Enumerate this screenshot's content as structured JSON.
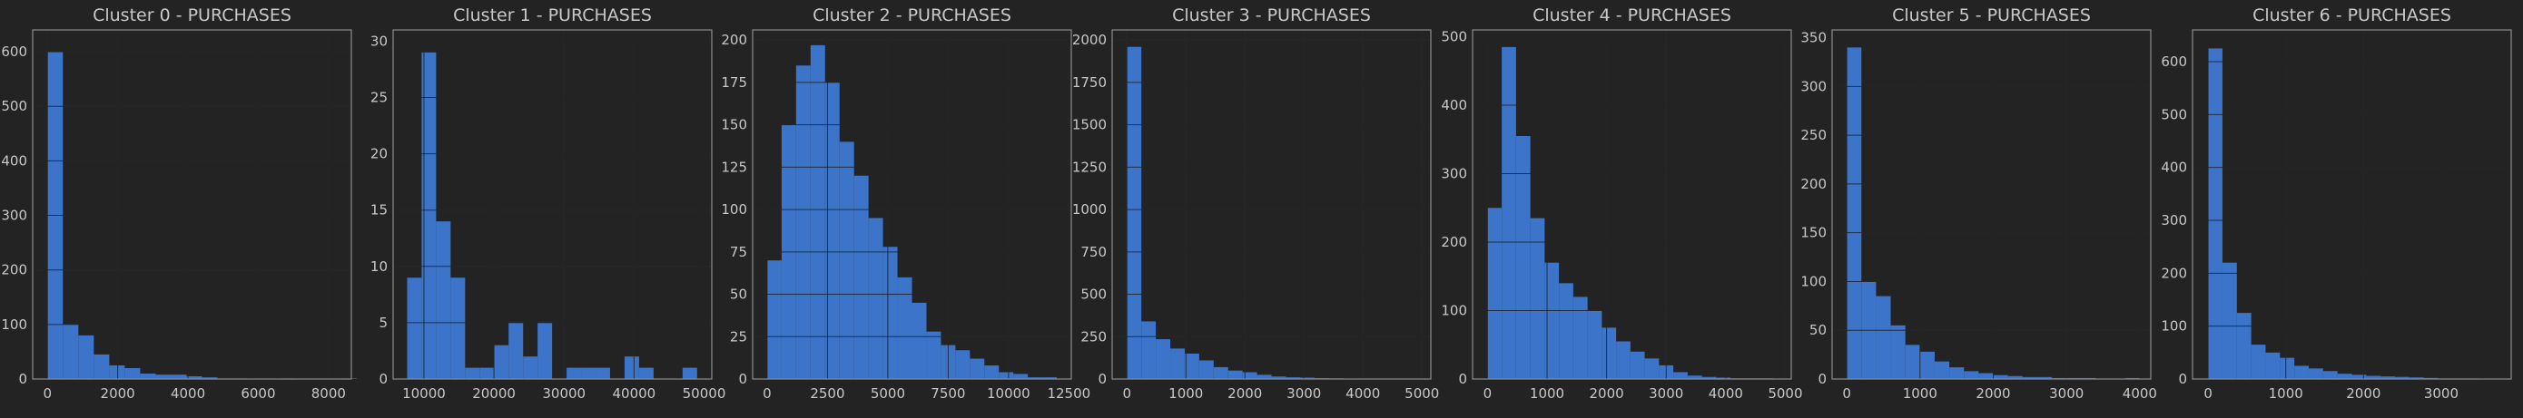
{
  "colors": {
    "background": "#232323",
    "bar": "#3b74c9",
    "grid": "#3a3a3a",
    "frame": "#8c8c8c",
    "text": "#c8c8c8"
  },
  "chart_data": [
    {
      "type": "bar",
      "title": "Cluster 0 - PURCHASES",
      "xlim": [
        -420,
        8650
      ],
      "ylim": [
        0,
        640
      ],
      "xticks": [
        0,
        2000,
        4000,
        6000,
        8000
      ],
      "xtick_labels": [
        "0",
        "2000",
        "4000",
        "6000",
        "8000"
      ],
      "yticks": [
        0,
        100,
        200,
        300,
        400,
        500,
        600
      ],
      "ytick_labels": [
        "0",
        "100",
        "200",
        "300",
        "400",
        "500",
        "600"
      ],
      "bin_start": 0,
      "bin_width": 440,
      "values": [
        600,
        100,
        80,
        45,
        25,
        20,
        10,
        8,
        8,
        5,
        3,
        1,
        1,
        0,
        0,
        1,
        0,
        0,
        0,
        1
      ]
    },
    {
      "type": "bar",
      "title": "Cluster 1 - PURCHASES",
      "xlim": [
        5600,
        51100
      ],
      "ylim": [
        0,
        31
      ],
      "xticks": [
        10000,
        20000,
        30000,
        40000,
        50000
      ],
      "xtick_labels": [
        "10000",
        "20000",
        "30000",
        "40000",
        "50000"
      ],
      "yticks": [
        0,
        5,
        10,
        15,
        20,
        25,
        30
      ],
      "ytick_labels": [
        "0",
        "5",
        "10",
        "15",
        "20",
        "25",
        "30"
      ],
      "bin_start": 7600,
      "bin_width": 2070,
      "values": [
        9,
        29,
        14,
        9,
        1,
        1,
        3,
        5,
        2,
        5,
        0,
        1,
        1,
        1,
        0,
        2,
        1,
        0,
        0,
        1
      ]
    },
    {
      "type": "bar",
      "title": "Cluster 2 - PURCHASES",
      "xlim": [
        -600,
        12600
      ],
      "ylim": [
        0,
        206
      ],
      "xticks": [
        0,
        2500,
        5000,
        7500,
        10000,
        12500
      ],
      "xtick_labels": [
        "0",
        "2500",
        "5000",
        "7500",
        "10000",
        "12500"
      ],
      "yticks": [
        0,
        25,
        50,
        75,
        100,
        125,
        150,
        175,
        200
      ],
      "ytick_labels": [
        "0",
        "25",
        "50",
        "75",
        "100",
        "125",
        "150",
        "175",
        "200"
      ],
      "bin_start": 0,
      "bin_width": 600,
      "values": [
        70,
        150,
        185,
        197,
        175,
        140,
        120,
        95,
        78,
        60,
        45,
        28,
        20,
        17,
        12,
        8,
        4,
        3,
        1,
        1
      ]
    },
    {
      "type": "bar",
      "title": "Cluster 3 - PURCHASES",
      "xlim": [
        -250,
        5150
      ],
      "ylim": [
        0,
        2060
      ],
      "xticks": [
        0,
        1000,
        2000,
        3000,
        4000,
        5000
      ],
      "xtick_labels": [
        "0",
        "1000",
        "2000",
        "3000",
        "4000",
        "5000"
      ],
      "yticks": [
        0,
        250,
        500,
        750,
        1000,
        1250,
        1500,
        1750,
        2000
      ],
      "ytick_labels": [
        "0",
        "250",
        "500",
        "750",
        "1000",
        "1250",
        "1500",
        "1750",
        "2000"
      ],
      "bin_start": 0,
      "bin_width": 245,
      "values": [
        1960,
        340,
        235,
        180,
        150,
        110,
        70,
        50,
        40,
        25,
        15,
        10,
        8,
        5,
        4,
        3,
        2,
        1,
        1,
        1
      ]
    },
    {
      "type": "bar",
      "title": "Cluster 4 - PURCHASES",
      "xlim": [
        -250,
        5100
      ],
      "ylim": [
        0,
        510
      ],
      "xticks": [
        0,
        1000,
        2000,
        3000,
        4000,
        5000
      ],
      "xtick_labels": [
        "0",
        "1000",
        "2000",
        "3000",
        "4000",
        "5000"
      ],
      "yticks": [
        0,
        100,
        200,
        300,
        400,
        500
      ],
      "ytick_labels": [
        "0",
        "100",
        "200",
        "300",
        "400",
        "500"
      ],
      "bin_start": 0,
      "bin_width": 240,
      "values": [
        250,
        485,
        355,
        235,
        170,
        140,
        120,
        100,
        75,
        55,
        40,
        30,
        20,
        10,
        5,
        3,
        2,
        1,
        1,
        1
      ]
    },
    {
      "type": "bar",
      "title": "Cluster 5 - PURCHASES",
      "xlim": [
        -200,
        4150
      ],
      "ylim": [
        0,
        358
      ],
      "xticks": [
        0,
        1000,
        2000,
        3000,
        4000
      ],
      "xtick_labels": [
        "0",
        "1000",
        "2000",
        "3000",
        "4000"
      ],
      "yticks": [
        0,
        50,
        100,
        150,
        200,
        250,
        300,
        350
      ],
      "ytick_labels": [
        "0",
        "50",
        "100",
        "150",
        "200",
        "250",
        "300",
        "350"
      ],
      "bin_start": 0,
      "bin_width": 200,
      "values": [
        340,
        100,
        85,
        55,
        35,
        28,
        18,
        12,
        8,
        6,
        4,
        3,
        2,
        2,
        1,
        1,
        1,
        0,
        0,
        1
      ]
    },
    {
      "type": "bar",
      "title": "Cluster 6 - PURCHASES",
      "xlim": [
        -200,
        3900
      ],
      "ylim": [
        0,
        660
      ],
      "xticks": [
        0,
        1000,
        2000,
        3000
      ],
      "xtick_labels": [
        "0",
        "1000",
        "2000",
        "3000"
      ],
      "yticks": [
        0,
        100,
        200,
        300,
        400,
        500,
        600
      ],
      "ytick_labels": [
        "0",
        "100",
        "200",
        "300",
        "400",
        "500",
        "600"
      ],
      "bin_start": 0,
      "bin_width": 185,
      "values": [
        625,
        220,
        125,
        65,
        50,
        40,
        25,
        20,
        15,
        10,
        8,
        6,
        5,
        4,
        3,
        2,
        1,
        1,
        1,
        0
      ]
    }
  ]
}
